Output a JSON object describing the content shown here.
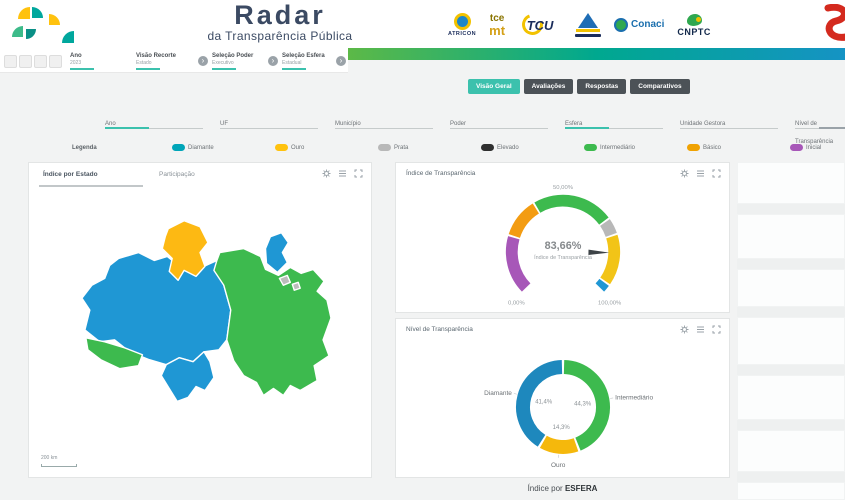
{
  "theme": {
    "accent": "#3cc1ad",
    "dark_button": "#4c5257",
    "navy": "#3b4a63",
    "background": "#f2f3f3",
    "gradient": [
      "#5cb947",
      "#00a88f",
      "#1593c4"
    ]
  },
  "header": {
    "title": "Radar",
    "subtitle": "da Transparência Pública",
    "logos": {
      "atricon": "ATRICON",
      "tce_line1": "tce",
      "tce_line2": "mt",
      "tcu": "TCU",
      "conaci": "Conaci",
      "cnptc": "CNPTC"
    }
  },
  "steps": {
    "items": [
      {
        "title": "Ano",
        "subtitle": "2023"
      },
      {
        "title": "Visão Recorte",
        "subtitle": "Estado"
      },
      {
        "title": "Seleção Poder",
        "subtitle": "Executivo"
      },
      {
        "title": "Seleção Esfera",
        "subtitle": "Estadual"
      }
    ]
  },
  "view_tabs": {
    "items": [
      {
        "label": "Visão Geral",
        "active": true
      },
      {
        "label": "Avaliações",
        "active": false
      },
      {
        "label": "Respostas",
        "active": false
      },
      {
        "label": "Comparativos",
        "active": false
      }
    ]
  },
  "filters": {
    "items": [
      {
        "label": "Ano"
      },
      {
        "label": "UF"
      },
      {
        "label": "Município"
      },
      {
        "label": "Poder"
      },
      {
        "label": "Esfera"
      },
      {
        "label": "Unidade Gestora"
      },
      {
        "label": "Nível de Transparência"
      }
    ]
  },
  "legend": {
    "title": "Legenda",
    "items": [
      {
        "label": "Diamante",
        "color": "#00a5b8"
      },
      {
        "label": "Ouro",
        "color": "#ffc20e"
      },
      {
        "label": "Prata",
        "color": "#b8b8b8"
      },
      {
        "label": "Elevado",
        "color": "#2f2f2f"
      },
      {
        "label": "Intermediário",
        "color": "#3dba4e"
      },
      {
        "label": "Básico",
        "color": "#f0a202"
      },
      {
        "label": "Inicial",
        "color": "#a757b8"
      }
    ]
  },
  "map_panel": {
    "tabs": [
      {
        "label": "Índice por Estado",
        "active": true
      },
      {
        "label": "Participação",
        "active": false
      }
    ]
  },
  "footer_title": {
    "prefix": "Índice por",
    "emphasis": "ESFERA"
  },
  "chart_data": [
    {
      "type": "gauge",
      "title": "Índice de Transparência",
      "value": 83.66,
      "value_label": "83,66%",
      "center_label": "Índice de Transparência",
      "min_label": "0,00%",
      "mid_label": "50,00%",
      "max_label": "100,00%",
      "range": [
        0,
        100
      ],
      "segments": [
        {
          "label": "Inicial",
          "from": 0,
          "to": 23,
          "color": "#a757b8"
        },
        {
          "label": "Básico",
          "from": 23,
          "to": 38.5,
          "color": "#f39c12"
        },
        {
          "label": "Intermediário",
          "from": 38.5,
          "to": 70,
          "color": "#3dba4e"
        },
        {
          "label": "Prata",
          "from": 70,
          "to": 76.5,
          "color": "#b8b8b8"
        },
        {
          "label": "Ouro",
          "from": 76.5,
          "to": 96.5,
          "color": "#f2c417"
        },
        {
          "label": "Diamante",
          "from": 96.5,
          "to": 100,
          "color": "#1f97d4"
        }
      ]
    },
    {
      "type": "donut",
      "title": "Nível de Transparência",
      "slices": [
        {
          "label": "Intermediário",
          "value": 44.3,
          "value_label": "44,3%",
          "color": "#3dba4e"
        },
        {
          "label": "Ouro",
          "value": 14.3,
          "value_label": "14,3%",
          "color": "#f5b80c"
        },
        {
          "label": "Diamante",
          "value": 41.4,
          "value_label": "41,4%",
          "color": "#1e88bd"
        }
      ]
    },
    {
      "type": "choropleth-map",
      "title": "Índice por Estado",
      "scale_label": "200 km",
      "regions": [
        {
          "name": "Amazonas",
          "color": "#1f97d4"
        },
        {
          "name": "Roraima",
          "color": "#fdb913"
        },
        {
          "name": "Pará",
          "color": "#3dba4e"
        },
        {
          "name": "Amapá",
          "color": "#1f97d4"
        },
        {
          "name": "Acre",
          "color": "#3dba4e"
        },
        {
          "name": "Rondônia",
          "color": "#1f97d4"
        },
        {
          "name": "Marajó",
          "color": "#bcbcbc"
        }
      ]
    }
  ]
}
